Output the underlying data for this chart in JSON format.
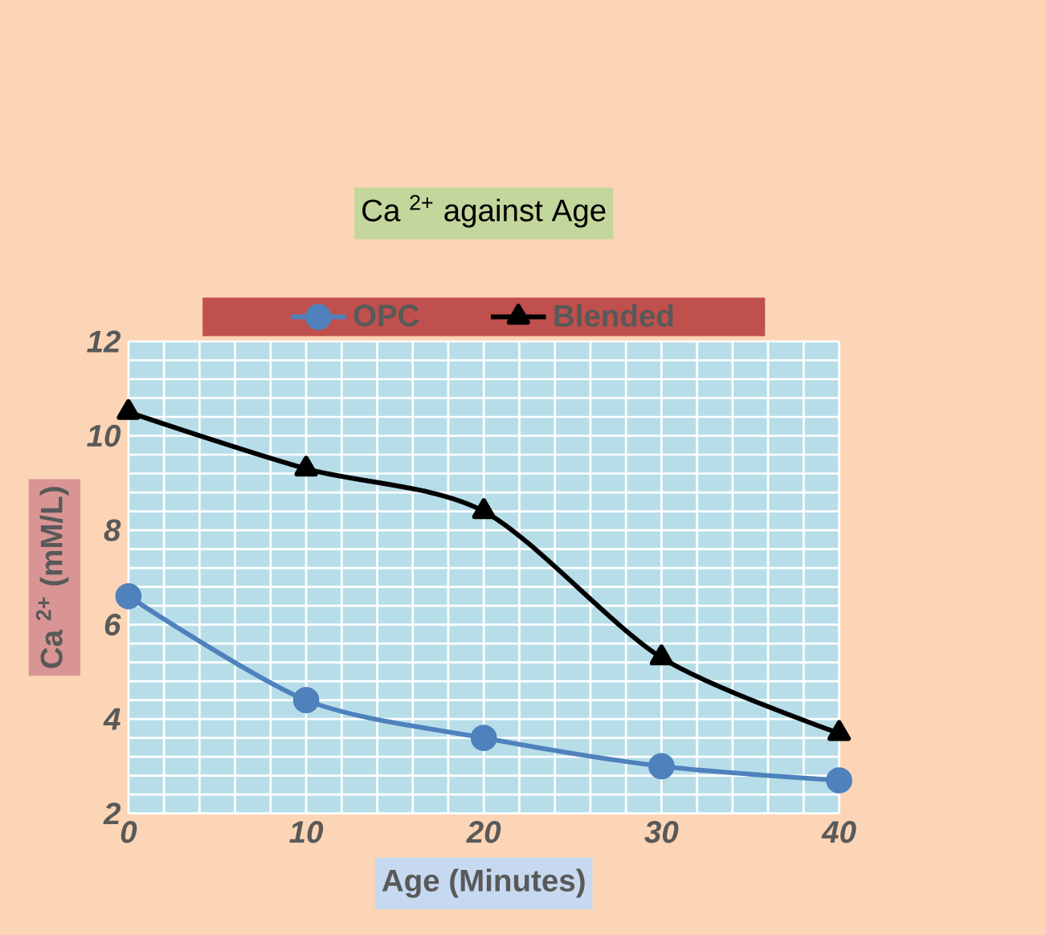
{
  "chart_data": {
    "type": "line",
    "title": "Ca $^{2+}$ against Age",
    "xlabel": "Age (Minutes)",
    "ylabel": "Ca $^{2+}$ (mM/L)",
    "x": [
      0,
      10,
      20,
      30,
      40
    ],
    "series": [
      {
        "name": "OPC",
        "color": "#4f81bd",
        "marker": "circle",
        "values": [
          6.6,
          4.4,
          3.6,
          3.0,
          2.7
        ]
      },
      {
        "name": "Blended",
        "color": "#000000",
        "marker": "triangle",
        "values": [
          10.5,
          9.3,
          8.4,
          5.3,
          3.7
        ]
      }
    ],
    "xlim": [
      0,
      40
    ],
    "xticks": [
      0,
      10,
      20,
      30,
      40
    ],
    "ylim": [
      2,
      12
    ],
    "yticks": [
      2,
      4,
      6,
      8,
      10,
      12
    ],
    "grid": true,
    "legend": "top"
  }
}
